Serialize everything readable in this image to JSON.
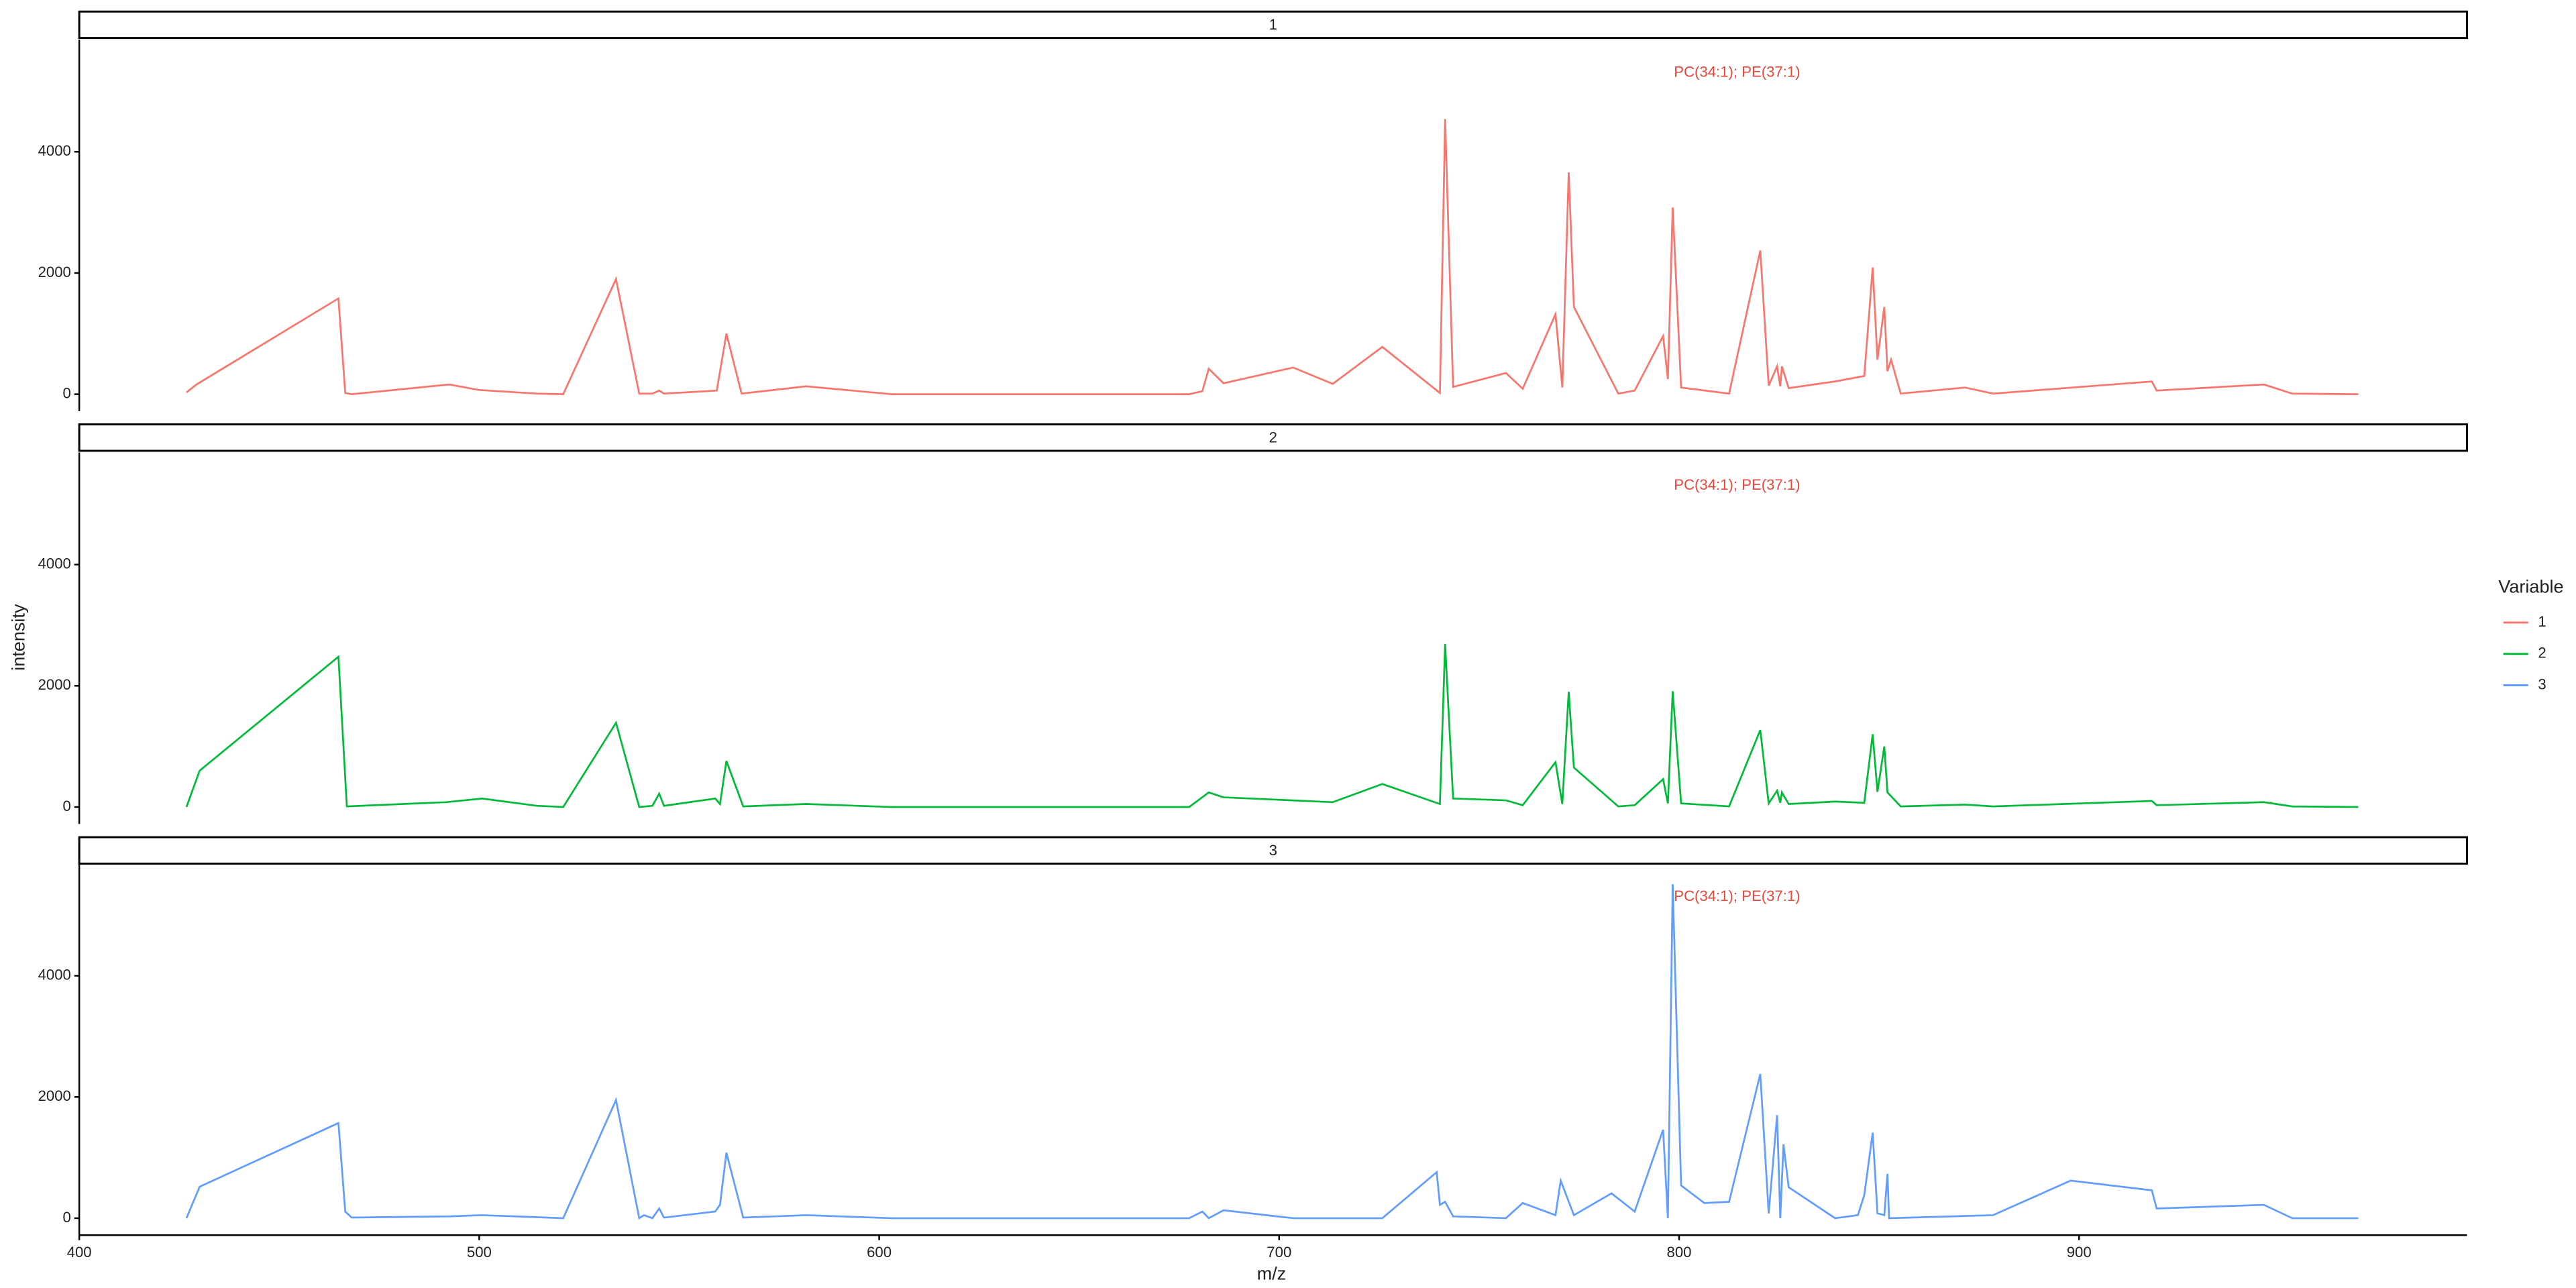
{
  "chart_data": {
    "type": "line",
    "xlabel": "m/z",
    "ylabel": "intensity",
    "legend_title": "Variable",
    "legend": "right",
    "annotation": {
      "text": "PC(34:1); PE(37:1)",
      "x": 814.5,
      "y": 5300,
      "color": "#e8483c"
    },
    "xlim": [
      400,
      997
    ],
    "xticks": [
      400,
      500,
      600,
      700,
      800,
      900
    ],
    "ylim": [
      -280,
      5850
    ],
    "yticks": [
      0,
      2000,
      4000
    ],
    "series": [
      {
        "name": "1",
        "color": "#F8766D",
        "x": [
          426.8,
          429.3,
          464.8,
          466.5,
          468.1,
          492.5,
          499.9,
          514.4,
          521.0,
          534.2,
          540.0,
          543.3,
          545,
          546.2,
          559.4,
          561.8,
          565.6,
          581.7,
          603.1,
          677.5,
          680.8,
          682.4,
          686.1,
          703.5,
          713.4,
          725.8,
          740.2,
          741.5,
          743.5,
          756.7,
          760.9,
          769.1,
          770.8,
          772.4,
          773.7,
          784.8,
          788.9,
          796.0,
          797.2,
          798.4,
          800.5,
          812.5,
          820.3,
          822.4,
          824.5,
          825.3,
          825.7,
          827.4,
          839.0,
          846.3,
          848.4,
          849.6,
          851.3,
          852.1,
          853,
          855.4,
          871.5,
          878.5,
          918.2,
          919.4,
          946.2,
          953.3,
          969.8
        ],
        "values": [
          30,
          160,
          1580,
          20,
          0,
          160,
          70,
          10,
          0,
          1900,
          10,
          10,
          60,
          10,
          60,
          1000,
          10,
          130,
          0,
          0,
          50,
          420,
          180,
          440,
          170,
          780,
          20,
          4540,
          120,
          350,
          90,
          1320,
          110,
          3660,
          1440,
          10,
          60,
          960,
          250,
          3080,
          110,
          10,
          2370,
          140,
          460,
          130,
          460,
          100,
          210,
          300,
          2090,
          570,
          1440,
          380,
          570,
          10,
          110,
          10,
          210,
          60,
          160,
          10,
          0
        ]
      },
      {
        "name": "2",
        "color": "#00BA38",
        "x": [
          426.8,
          430.1,
          464.8,
          466.9,
          491.7,
          500.7,
          514.4,
          521.0,
          534.2,
          540.0,
          543.3,
          545,
          546.2,
          559.0,
          560.2,
          561.8,
          566,
          581.7,
          603.1,
          677.5,
          682.4,
          686.1,
          713.4,
          725.8,
          740.2,
          741.5,
          743.5,
          756.7,
          760.9,
          769.1,
          770.8,
          772.4,
          773.7,
          784.8,
          788.9,
          796.0,
          797.2,
          798.4,
          800.5,
          812.5,
          820.3,
          822.4,
          824.5,
          825.3,
          825.7,
          827.4,
          839.0,
          846.3,
          848.4,
          849.6,
          851.3,
          852.1,
          855.4,
          871.5,
          878.5,
          918.2,
          919.4,
          946.2,
          953.3,
          969.8
        ],
        "values": [
          0,
          600,
          2480,
          10,
          80,
          140,
          20,
          0,
          1390,
          0,
          20,
          220,
          20,
          140,
          50,
          760,
          10,
          50,
          0,
          0,
          240,
          160,
          80,
          380,
          50,
          2690,
          140,
          110,
          30,
          740,
          50,
          1900,
          650,
          10,
          30,
          460,
          60,
          1910,
          60,
          10,
          1270,
          60,
          270,
          70,
          240,
          50,
          90,
          70,
          1200,
          250,
          1000,
          240,
          10,
          40,
          10,
          100,
          30,
          80,
          10,
          0
        ]
      },
      {
        "name": "3",
        "color": "#619CFF",
        "x": [
          426.8,
          430.1,
          464.8,
          466.5,
          468.1,
          492.5,
          500.7,
          521.0,
          534.2,
          540.0,
          541.2,
          543.3,
          545,
          546.2,
          559.0,
          560.2,
          561.8,
          566,
          581.7,
          603.1,
          677.5,
          680.8,
          682.4,
          686.1,
          703.5,
          725.8,
          739.4,
          740.2,
          741.5,
          743.5,
          756.7,
          760.9,
          769.1,
          770.4,
          773.7,
          783.1,
          788.9,
          796.0,
          797.2,
          798.4,
          800.5,
          806.3,
          812.5,
          820.3,
          822.4,
          824.5,
          825.3,
          826.1,
          827.4,
          839.0,
          844.7,
          846.3,
          848.4,
          849.6,
          851.3,
          852.1,
          852.5,
          878.5,
          897.9,
          918.2,
          919.4,
          946.2,
          953.3,
          969.8
        ],
        "values": [
          0,
          520,
          1570,
          110,
          10,
          30,
          50,
          0,
          1950,
          0,
          50,
          0,
          160,
          10,
          110,
          220,
          1080,
          10,
          50,
          0,
          0,
          110,
          0,
          130,
          0,
          0,
          760,
          220,
          270,
          30,
          0,
          250,
          50,
          620,
          50,
          410,
          110,
          1460,
          0,
          5510,
          540,
          250,
          270,
          2380,
          80,
          1700,
          0,
          1220,
          510,
          0,
          50,
          380,
          1410,
          80,
          50,
          730,
          0,
          50,
          620,
          460,
          160,
          220,
          0,
          0
        ]
      }
    ]
  }
}
